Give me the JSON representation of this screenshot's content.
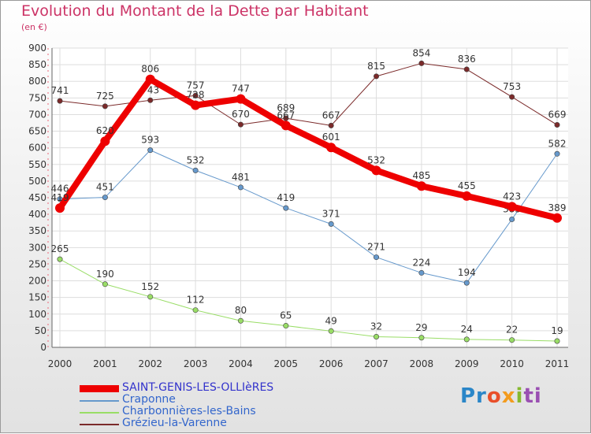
{
  "title": "Evolution du Montant de la Dette par Habitant",
  "unit": "(en €)",
  "logo": "Proxiti",
  "chart_data": {
    "type": "line",
    "x": [
      "2000",
      "2001",
      "2002",
      "2003",
      "2004",
      "2005",
      "2006",
      "2007",
      "2008",
      "2009",
      "2010",
      "2011"
    ],
    "ylim": [
      0,
      900
    ],
    "yticks": [
      0,
      50,
      100,
      150,
      200,
      250,
      300,
      350,
      400,
      450,
      500,
      550,
      600,
      650,
      700,
      750,
      800,
      850,
      900
    ],
    "grid": true,
    "legend_position": "bottom-left",
    "series": [
      {
        "name": "Grézieu-la-Varenne",
        "color": "#7b2a2a",
        "width": 1,
        "values": [
          741,
          725,
          743,
          757,
          670,
          689,
          667,
          815,
          854,
          836,
          753,
          669
        ]
      },
      {
        "name": "Charbonnières-les-Bains",
        "color": "#99dd66",
        "width": 1,
        "values": [
          265,
          190,
          152,
          112,
          80,
          65,
          49,
          32,
          29,
          24,
          22,
          19
        ]
      },
      {
        "name": "Craponne",
        "color": "#6699cc",
        "width": 1,
        "values": [
          446,
          451,
          593,
          532,
          481,
          419,
          371,
          271,
          224,
          194,
          385,
          582
        ]
      },
      {
        "name": "SAINT-GENIS-LES-OLLIèRES",
        "color": "#ee0000",
        "width": 8,
        "values": [
          419,
          620,
          806,
          728,
          747,
          667,
          601,
          532,
          485,
          455,
          423,
          389
        ]
      }
    ]
  }
}
